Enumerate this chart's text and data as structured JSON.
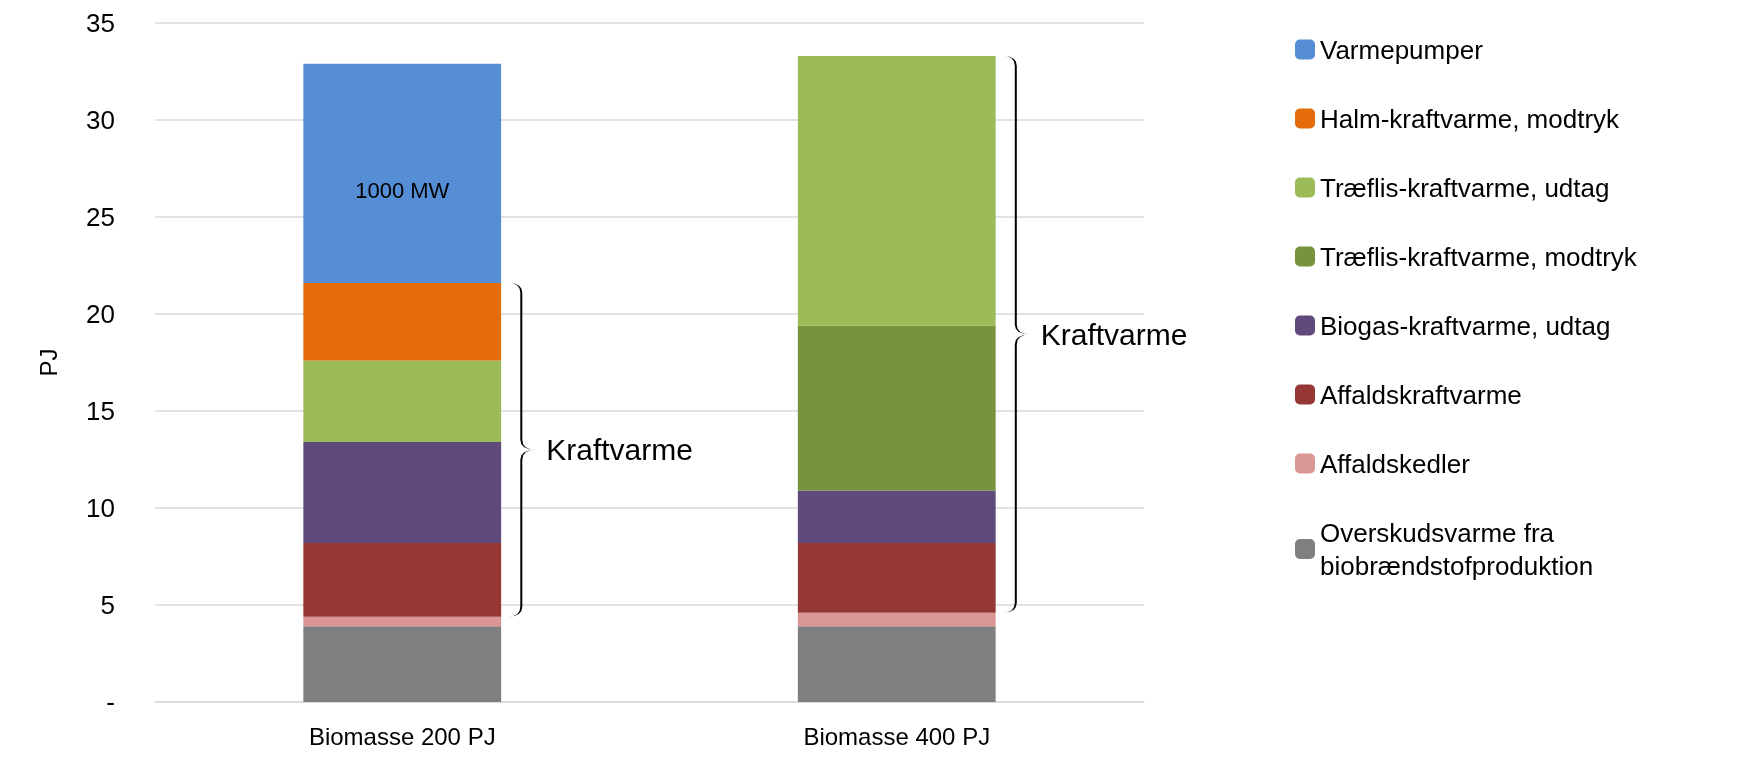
{
  "chart_data": {
    "type": "bar",
    "stacked": true,
    "ylabel": "PJ",
    "categories": [
      "Biomasse 200 PJ",
      "Biomasse 400 PJ"
    ],
    "series": [
      {
        "name": "Overskudsvarme fra biobrændstofproduktion",
        "color": "#7f7f7f",
        "values": [
          3.9,
          3.9
        ]
      },
      {
        "name": "Affaldskedler",
        "color": "#d99694",
        "values": [
          0.5,
          0.7
        ]
      },
      {
        "name": "Affaldskraftvarme",
        "color": "#953735",
        "values": [
          3.8,
          3.6
        ]
      },
      {
        "name": "Biogas-kraftvarme, udtag",
        "color": "#604a7b",
        "values": [
          5.2,
          2.7
        ]
      },
      {
        "name": "Træflis-kraftvarme, modtryk",
        "color": "#77933c",
        "values": [
          null,
          8.5
        ]
      },
      {
        "name": "Træflis-kraftvarme, udtag",
        "color": "#9bbb59",
        "values": [
          4.2,
          13.9
        ]
      },
      {
        "name": "Halm-kraftvarme, modtryk",
        "color": "#e46c0a",
        "values": [
          4.0,
          null
        ]
      },
      {
        "name": "Varmepumper",
        "color": "#558ed5",
        "values": [
          11.3,
          null
        ]
      }
    ],
    "ylim": [
      0,
      35
    ],
    "yticks": [
      {
        "value": 0,
        "label": "-"
      },
      5,
      10,
      15,
      20,
      25,
      30,
      35
    ],
    "grid": "y",
    "legend": "right",
    "annotations": [
      "1000 MW",
      "Kraftvarme",
      "Kraftvarme"
    ]
  }
}
